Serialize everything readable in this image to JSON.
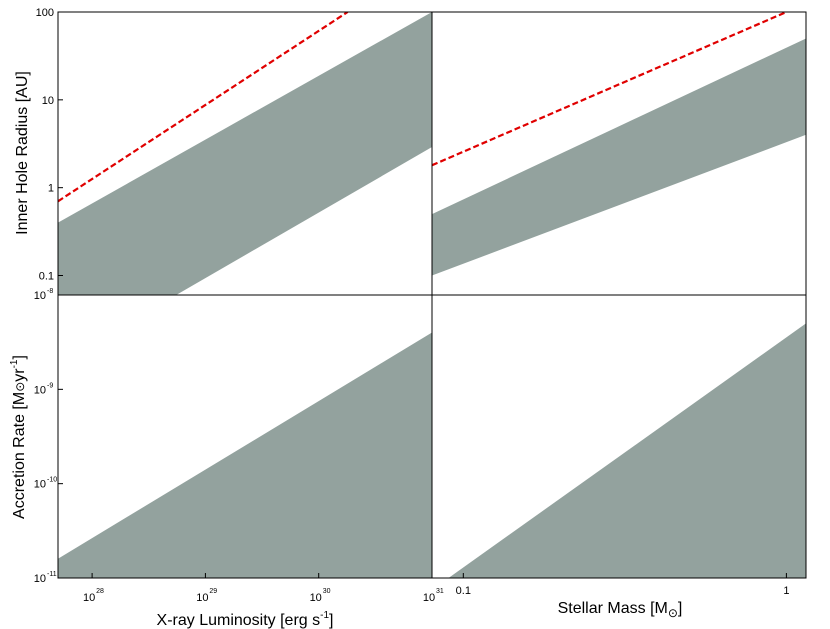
{
  "colors": {
    "band": "#93a29e",
    "dashed": "#e00000",
    "axis": "#000000"
  },
  "labels": {
    "y_top": "Inner Hole Radius [AU]",
    "y_bottom_main": "Accretion Rate [M",
    "y_bottom_sun": "⊙",
    "y_bottom_mid": "yr",
    "y_bottom_sup": "-1",
    "y_bottom_end": "]",
    "x_left_main": "X-ray Luminosity [erg s",
    "x_left_sup": "-1",
    "x_left_end": "]",
    "x_right_main": "Stellar Mass [M",
    "x_right_sun": "⊙",
    "x_right_end": "]"
  },
  "chart_data": [
    {
      "type": "area",
      "panel": "top-left",
      "x_scale": "log",
      "y_scale": "log",
      "xlim": [
        5e+27,
        1e+31
      ],
      "ylim": [
        0.06,
        100
      ],
      "ylabel": "Inner Hole Radius [AU]",
      "y_ticks": [
        {
          "value": 0.1,
          "label": "0.1"
        },
        {
          "value": 1,
          "label": "1"
        },
        {
          "value": 10,
          "label": "10"
        },
        {
          "value": 100,
          "label": "100"
        }
      ],
      "series": [
        {
          "kind": "band",
          "x": [
            5e+27,
            1e+31
          ],
          "lower": [
            0.01,
            2.9
          ],
          "upper": [
            0.4,
            100
          ]
        },
        {
          "kind": "dashed",
          "x": [
            5e+27,
            1.8e+30
          ],
          "y": [
            0.7,
            100
          ]
        }
      ]
    },
    {
      "type": "area",
      "panel": "top-right",
      "x_scale": "log",
      "y_scale": "log",
      "xlim": [
        0.08,
        1.15
      ],
      "ylim": [
        0.06,
        100
      ],
      "series": [
        {
          "kind": "band",
          "x": [
            0.08,
            1.15
          ],
          "lower": [
            0.1,
            4
          ],
          "upper": [
            0.5,
            50
          ]
        },
        {
          "kind": "dashed",
          "x": [
            0.08,
            1.0
          ],
          "y": [
            1.8,
            100
          ]
        }
      ]
    },
    {
      "type": "area",
      "panel": "bottom-left",
      "x_scale": "log",
      "y_scale": "log",
      "xlim": [
        5e+27,
        1e+31
      ],
      "ylim": [
        1e-11,
        1e-08
      ],
      "xlabel": "X-ray Luminosity [erg s-1]",
      "ylabel": "Accretion Rate [M⊙yr-1]",
      "x_ticks": [
        {
          "value": 1e+28,
          "base": "10",
          "exp": "28"
        },
        {
          "value": 1e+29,
          "base": "10",
          "exp": "29"
        },
        {
          "value": 1e+30,
          "base": "10",
          "exp": "30"
        },
        {
          "value": 1e+31,
          "base": "10",
          "exp": "31"
        }
      ],
      "y_ticks": [
        {
          "value": 1e-11,
          "base": "10",
          "exp": "-11"
        },
        {
          "value": 1e-10,
          "base": "10",
          "exp": "-10"
        },
        {
          "value": 1e-09,
          "base": "10",
          "exp": "-9"
        },
        {
          "value": 1e-08,
          "base": "10",
          "exp": "-8"
        }
      ],
      "series": [
        {
          "kind": "band",
          "x": [
            5e+27,
            1e+31
          ],
          "lower": [
            1e-11,
            1e-11
          ],
          "upper": [
            1.6e-11,
            4e-09
          ]
        }
      ]
    },
    {
      "type": "area",
      "panel": "bottom-right",
      "x_scale": "log",
      "y_scale": "log",
      "xlim": [
        0.08,
        1.15
      ],
      "ylim": [
        1e-11,
        1e-08
      ],
      "xlabel": "Stellar Mass [M⊙]",
      "x_ticks": [
        {
          "value": 0.1,
          "label": "0.1"
        },
        {
          "value": 1,
          "label": "1"
        }
      ],
      "series": [
        {
          "kind": "band",
          "x": [
            0.09,
            1.15
          ],
          "lower": [
            1e-11,
            1e-11
          ],
          "upper": [
            1e-11,
            5e-09
          ]
        }
      ]
    }
  ]
}
